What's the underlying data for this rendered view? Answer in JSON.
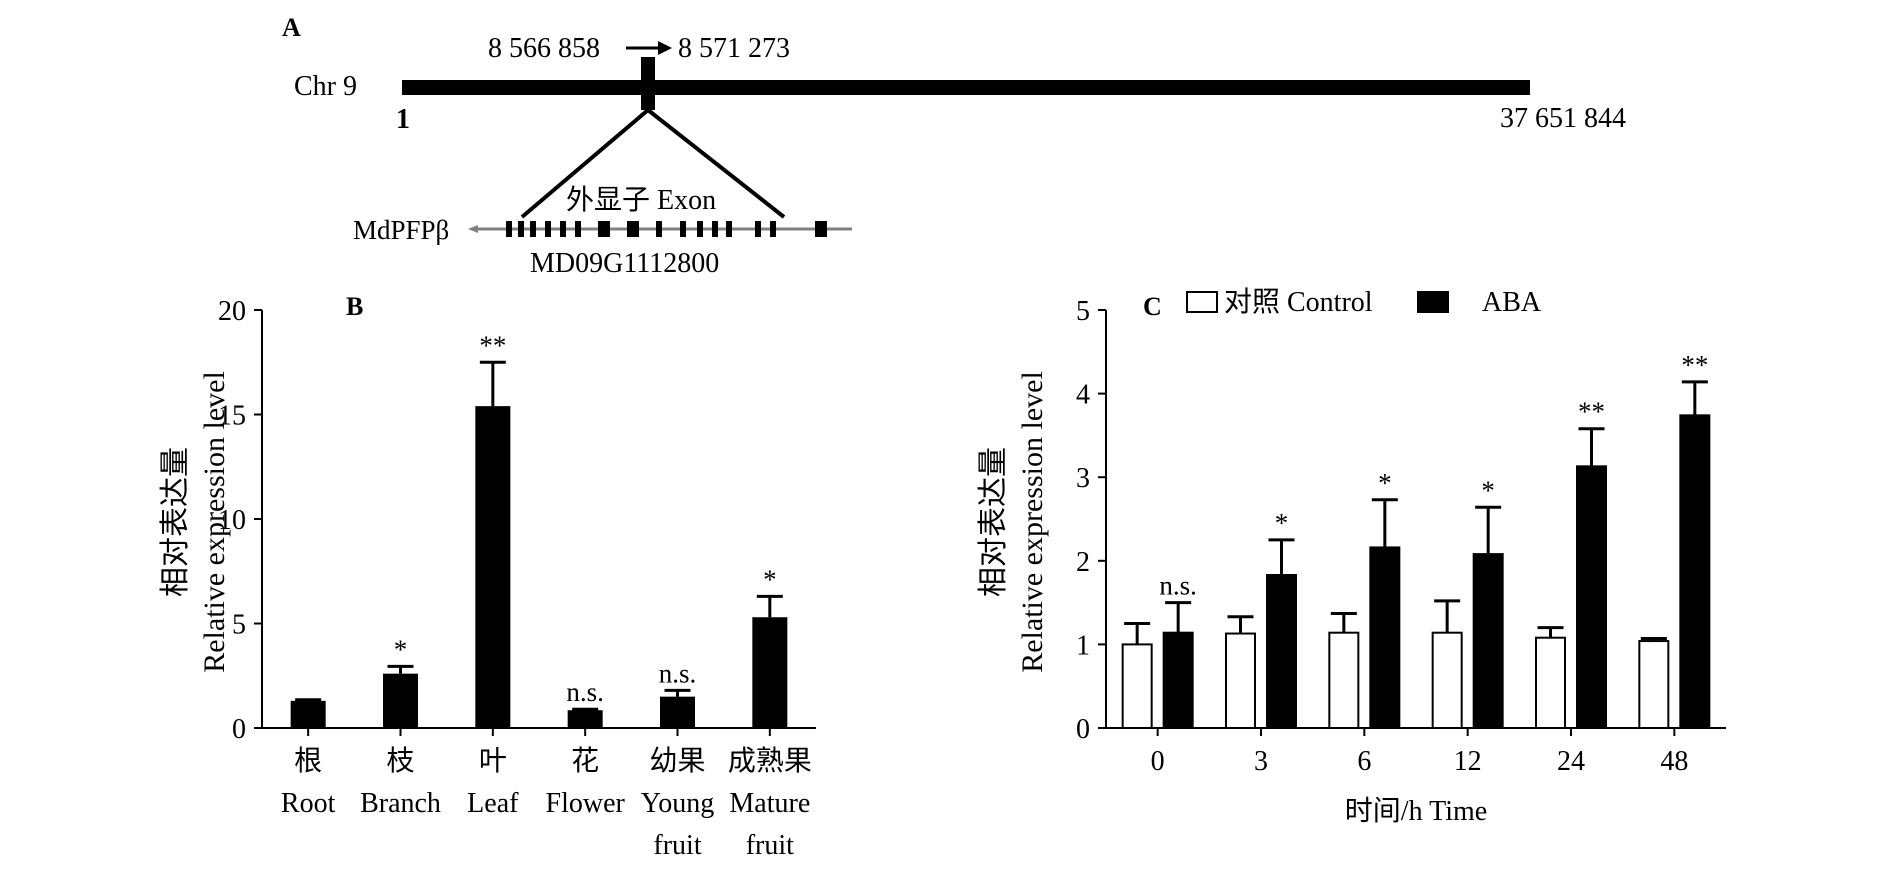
{
  "panel_a": {
    "label": "A",
    "chr_label": "Chr 9",
    "start_coord": "8 566 858",
    "end_coord": "8 571 273",
    "arrow": "→",
    "chr_start": "1",
    "chr_end": "37 651 844",
    "exon_label": "外显子 Exon",
    "gene_label": "MdPFPβ",
    "gene_id": "MD09G1112800"
  },
  "chart_data": [
    {
      "type": "bar",
      "panel": "B",
      "ylabel_cn": "相对表达量",
      "ylabel_en": "Relative expression level",
      "ylim": [
        0,
        20
      ],
      "yticks": [
        "0",
        "5",
        "10",
        "15",
        "20"
      ],
      "categories": [
        {
          "cn": "根",
          "en": [
            "Root"
          ]
        },
        {
          "cn": "枝",
          "en": [
            "Branch"
          ]
        },
        {
          "cn": "叶",
          "en": [
            "Leaf"
          ]
        },
        {
          "cn": "花",
          "en": [
            "Flower"
          ]
        },
        {
          "cn": "幼果",
          "en": [
            "Young",
            "fruit"
          ]
        },
        {
          "cn": "成熟果",
          "en": [
            "Mature",
            "fruit"
          ]
        }
      ],
      "values": [
        1.3,
        2.6,
        15.4,
        0.85,
        1.5,
        5.3
      ],
      "errors": [
        0.05,
        0.35,
        2.1,
        0.05,
        0.3,
        1.0
      ],
      "significance": [
        "",
        "*",
        "**",
        "n.s.",
        "n.s.",
        "*"
      ],
      "bar_color": "#000000"
    },
    {
      "type": "bar",
      "panel": "C",
      "ylabel_cn": "相对表达量",
      "ylabel_en": "Relative expression level",
      "xlabel": "时间/h Time",
      "ylim": [
        0,
        5
      ],
      "yticks": [
        "0",
        "1",
        "2",
        "3",
        "4",
        "5"
      ],
      "categories": [
        "0",
        "3",
        "6",
        "12",
        "24",
        "48"
      ],
      "series": [
        {
          "name": "对照 Control",
          "values": [
            1.0,
            1.13,
            1.14,
            1.14,
            1.08,
            1.04
          ],
          "errors": [
            0.25,
            0.2,
            0.23,
            0.38,
            0.12,
            0.03
          ],
          "color": "#ffffff"
        },
        {
          "name": "ABA",
          "values": [
            1.14,
            1.83,
            2.16,
            2.08,
            3.13,
            3.74
          ],
          "errors": [
            0.36,
            0.42,
            0.57,
            0.56,
            0.45,
            0.4
          ],
          "color": "#000000"
        }
      ],
      "significance": [
        "n.s.",
        "*",
        "*",
        "*",
        "**",
        "**"
      ]
    }
  ]
}
